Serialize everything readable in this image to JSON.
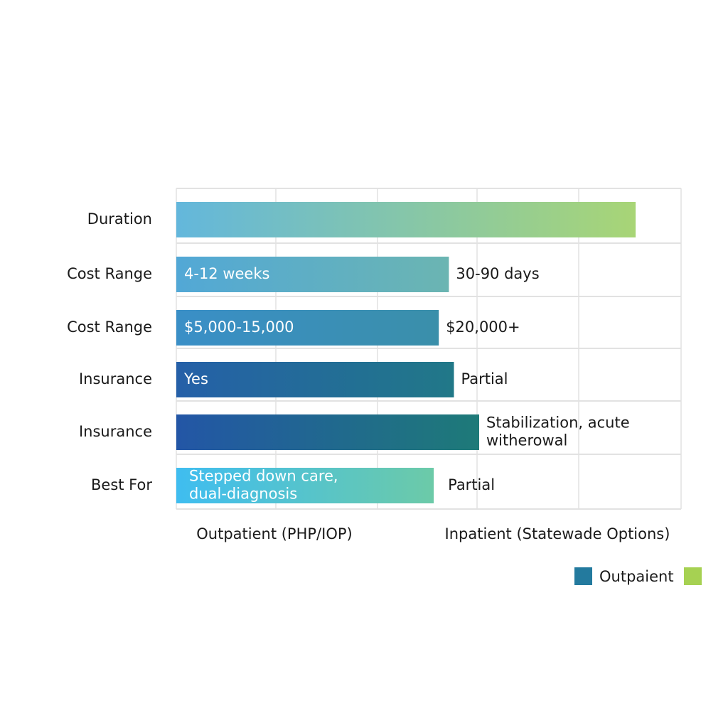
{
  "chart_data": {
    "type": "bar",
    "orientation": "horizontal",
    "title": "",
    "grid": true,
    "legend_placement": "bottom-right",
    "categories": [
      "Duration",
      "Cost Range",
      "Cost Range",
      "Insurance",
      "Insurance",
      "Best For"
    ],
    "values": [
      0.91,
      0.54,
      0.52,
      0.55,
      0.6,
      0.51
    ],
    "inside_labels": [
      "",
      "4-12 weeks",
      "$5,000-15,000",
      "Yes",
      "",
      "Stepped down care,\ndual-diagnosis"
    ],
    "outside_labels": [
      "",
      "30-90 days",
      "$20,000+",
      "Partial",
      "Stabilization, acute\nwitherowal",
      "Partial"
    ],
    "bar_colors": [
      [
        "#63b7dc",
        "#a8d576"
      ],
      [
        "#52a8d6",
        "#6bb5b2"
      ],
      [
        "#3a8fc7",
        "#3a8faa"
      ],
      [
        "#2560a8",
        "#217888"
      ],
      [
        "#2356a6",
        "#1e7a78"
      ],
      [
        "#3fbdf0",
        "#6ccaa8"
      ]
    ],
    "column_labels": [
      "Outpatient (PHP/IOP)",
      "Inpatient (Statewade Options)"
    ],
    "legend": [
      {
        "label": "Outpaient",
        "color": "#237a9e"
      },
      {
        "label": "",
        "color": "#a6d152"
      }
    ]
  }
}
